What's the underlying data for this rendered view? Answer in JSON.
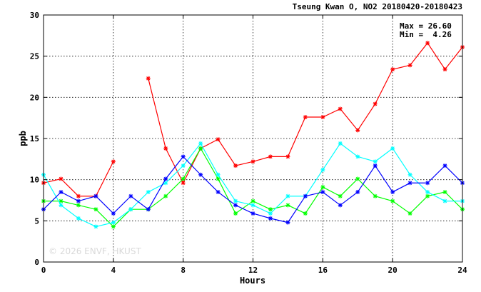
{
  "chart_data": {
    "type": "line",
    "title": "Tseung Kwan O, NO2 20180420-20180423",
    "xlabel": "Hours",
    "ylabel": "ppb",
    "xlim": [
      0,
      24
    ],
    "ylim": [
      0,
      30
    ],
    "x_ticks": [
      0,
      4,
      8,
      12,
      16,
      20,
      24
    ],
    "y_ticks": [
      0,
      5,
      10,
      15,
      20,
      25,
      30
    ],
    "grid": true,
    "annotations": {
      "max_label": "Max = 26.60",
      "min_label": "Min =  4.26"
    },
    "watermark": "© 2026  ENVF, HKUST",
    "x": [
      0,
      1,
      2,
      3,
      4,
      5,
      6,
      7,
      8,
      9,
      10,
      11,
      12,
      13,
      14,
      15,
      16,
      17,
      18,
      19,
      20,
      21,
      22,
      23,
      24
    ],
    "series": [
      {
        "color": "#ff0000",
        "values": [
          9.6,
          10.1,
          8.0,
          8.0,
          12.2,
          null,
          22.3,
          13.8,
          9.6,
          13.8,
          14.9,
          11.7,
          12.2,
          12.8,
          12.8,
          17.6,
          17.6,
          18.6,
          16.0,
          19.2,
          23.4,
          23.9,
          26.6,
          23.4,
          26.1
        ]
      },
      {
        "color": "#00ff00",
        "values": [
          7.4,
          7.4,
          6.9,
          6.4,
          4.3,
          6.4,
          6.4,
          8.0,
          10.1,
          13.8,
          10.1,
          5.9,
          7.4,
          6.4,
          6.9,
          5.9,
          9.1,
          8.0,
          10.1,
          8.0,
          7.4,
          5.9,
          8.0,
          8.5,
          6.4
        ]
      },
      {
        "color": "#00ffff",
        "values": [
          10.6,
          6.9,
          5.3,
          4.3,
          4.8,
          6.4,
          8.5,
          9.6,
          11.7,
          14.4,
          10.6,
          7.4,
          6.9,
          5.9,
          8.0,
          8.0,
          11.2,
          14.4,
          12.8,
          12.2,
          13.8,
          10.6,
          8.5,
          7.4,
          7.4
        ]
      },
      {
        "color": "#0000ff",
        "values": [
          6.4,
          8.5,
          7.4,
          8.0,
          5.9,
          8.0,
          6.4,
          10.1,
          12.8,
          10.6,
          8.5,
          6.9,
          5.9,
          5.3,
          4.8,
          8.0,
          8.5,
          6.9,
          8.5,
          11.7,
          8.5,
          9.6,
          9.6,
          11.7,
          9.6
        ]
      }
    ]
  }
}
